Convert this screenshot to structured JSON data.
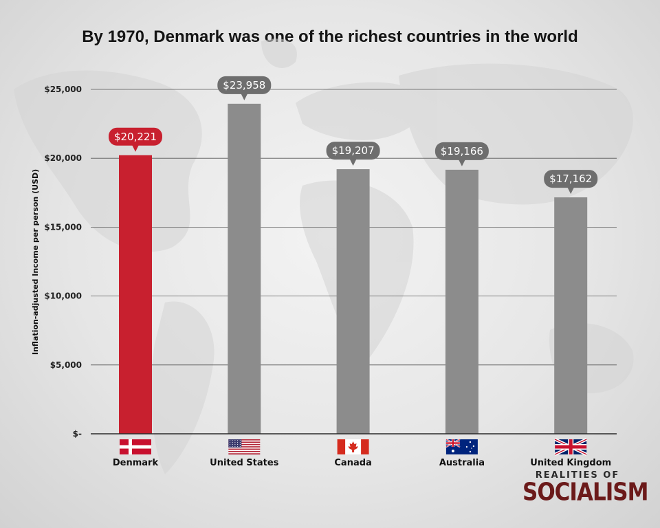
{
  "chart_data": {
    "type": "bar",
    "title": "By 1970, Denmark was one of the richest countries in the world",
    "ylabel": "Inflation-adjusted Income per person (USD)",
    "xlabel": "",
    "categories": [
      "Denmark",
      "United States",
      "Canada",
      "Australia",
      "United Kingdom"
    ],
    "values": [
      20221,
      23958,
      19207,
      19166,
      17162
    ],
    "data_labels": [
      "$20,221",
      "$23,958",
      "$19,207",
      "$19,166",
      "$17,162"
    ],
    "ylim": [
      0,
      25000
    ],
    "y_ticks": [
      0,
      5000,
      10000,
      15000,
      20000,
      25000
    ],
    "y_tick_labels": [
      "$-",
      "$5,000",
      "$10,000",
      "$15,000",
      "$20,000",
      "$25,000"
    ],
    "grid": true,
    "highlight_color": "#c8202f",
    "bar_color": "#8c8c8c",
    "label_box_color": "#6e6e6e",
    "category_icons": [
      "denmark-flag-icon",
      "united-states-flag-icon",
      "canada-flag-icon",
      "australia-flag-icon",
      "united-kingdom-flag-icon"
    ]
  },
  "brand": {
    "line1": "REALITIES OF",
    "line2": "SOCIALISM"
  }
}
